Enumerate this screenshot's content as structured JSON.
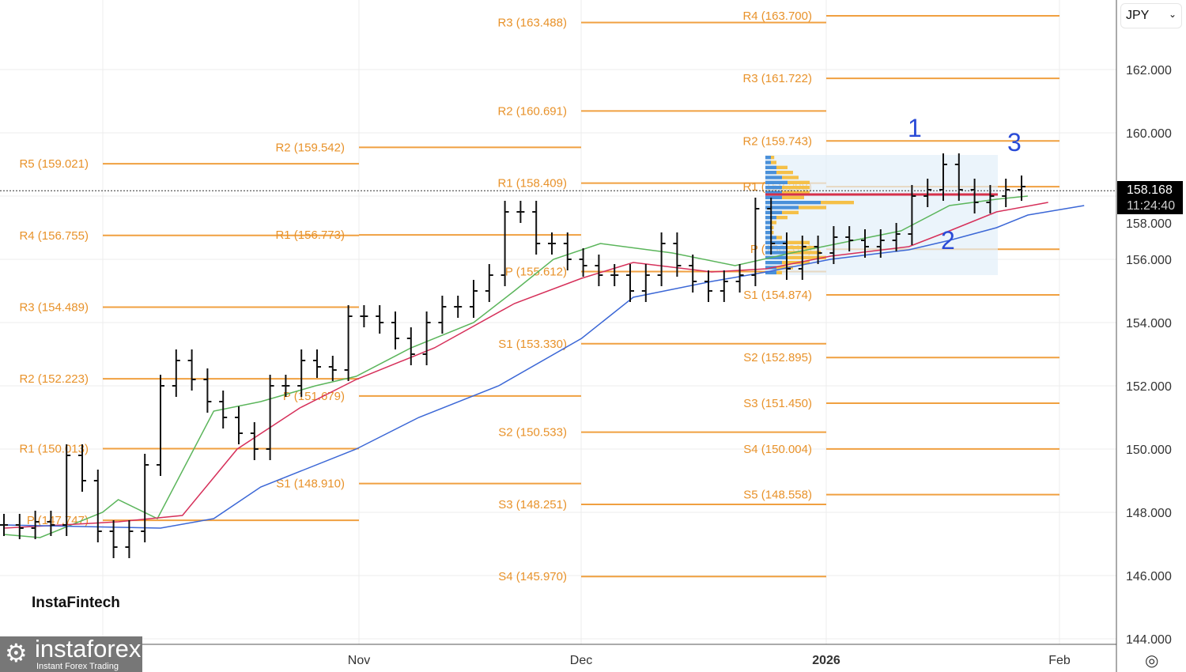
{
  "chart_data": {
    "type": "ohlc",
    "symbol_currency": "JPY",
    "ylim": [
      144,
      164
    ],
    "y_ticks": [
      "144.000",
      "146.000",
      "148.000",
      "150.000",
      "152.000",
      "154.000",
      "156.000",
      "158.000",
      "160.000",
      "162.000"
    ],
    "x_labels": [
      "Nov",
      "Dec",
      "2026",
      "Feb"
    ],
    "last_price": "158.168",
    "countdown": "11:24:40",
    "closes": [
      147.6,
      147.5,
      147.7,
      147.6,
      149.8,
      149.0,
      147.4,
      146.9,
      147.4,
      149.5,
      152.0,
      152.8,
      152.2,
      151.5,
      151.0,
      150.5,
      150.0,
      152.0,
      152.0,
      152.8,
      152.6,
      152.5,
      154.2,
      154.2,
      154.0,
      153.5,
      153.0,
      154.0,
      154.5,
      154.5,
      155.0,
      155.5,
      157.5,
      157.5,
      156.5,
      156.5,
      156.0,
      155.8,
      155.5,
      155.5,
      155.0,
      155.5,
      156.5,
      155.8,
      155.3,
      155.0,
      155.3,
      155.5,
      157.6,
      156.5,
      155.7,
      156.4,
      156.2,
      156.7,
      156.6,
      156.4,
      156.6,
      156.8,
      158.0,
      158.2,
      159.0,
      158.2,
      157.8,
      158.0,
      158.2,
      158.3
    ],
    "moving_averages": [
      {
        "name": "fast",
        "color": "#5bb55b",
        "points": [
          [
            0,
            147.3
          ],
          [
            2.3,
            147.2
          ],
          [
            6.3,
            148
          ],
          [
            7.3,
            148.4
          ],
          [
            9.8,
            147.8
          ],
          [
            13.4,
            151.2
          ],
          [
            16.4,
            151.5
          ],
          [
            19.9,
            152
          ],
          [
            22.5,
            152.3
          ],
          [
            26,
            153.2
          ],
          [
            30,
            154
          ],
          [
            32.6,
            155
          ],
          [
            35.1,
            156
          ],
          [
            38.1,
            156.5
          ],
          [
            42.7,
            156.2
          ],
          [
            46.7,
            155.8
          ],
          [
            50.3,
            156.2
          ],
          [
            53.3,
            156.5
          ],
          [
            57.3,
            156.9
          ],
          [
            60.4,
            157.7
          ],
          [
            63.4,
            157.9
          ],
          [
            65.4,
            158.0
          ]
        ]
      },
      {
        "name": "medium",
        "color": "#d6305a",
        "points": [
          [
            0,
            147.5
          ],
          [
            7.3,
            147.7
          ],
          [
            11.4,
            147.9
          ],
          [
            14.9,
            150
          ],
          [
            18.9,
            151.3
          ],
          [
            22.5,
            152.2
          ],
          [
            27.5,
            153.2
          ],
          [
            32.6,
            154.6
          ],
          [
            36.9,
            155.4
          ],
          [
            40.2,
            155.9
          ],
          [
            45.2,
            155.6
          ],
          [
            48.7,
            155.7
          ],
          [
            52.8,
            156.1
          ],
          [
            57.8,
            156.4
          ],
          [
            60.4,
            156.9
          ],
          [
            63.4,
            157.5
          ],
          [
            66.7,
            157.8
          ]
        ]
      },
      {
        "name": "slow",
        "color": "#3b67d6",
        "points": [
          [
            0,
            147.6
          ],
          [
            10,
            147.5
          ],
          [
            13.4,
            147.8
          ],
          [
            16.4,
            148.8
          ],
          [
            22.5,
            150
          ],
          [
            26.5,
            151
          ],
          [
            31.6,
            152
          ],
          [
            36.9,
            153.5
          ],
          [
            40.2,
            154.8
          ],
          [
            45.2,
            155.3
          ],
          [
            48.7,
            155.6
          ],
          [
            52.8,
            156
          ],
          [
            57.8,
            156.3
          ],
          [
            60.4,
            156.6
          ],
          [
            63.4,
            157
          ],
          [
            65.4,
            157.4
          ],
          [
            69,
            157.7
          ]
        ]
      }
    ],
    "pivot_periods": [
      {
        "levels": [
          [
            "R5 (159.021)",
            159.021
          ],
          [
            "R4 (156.755)",
            156.755
          ],
          [
            "R3 (154.489)",
            154.489
          ],
          [
            "R2 (152.223)",
            152.223
          ],
          [
            "R1 (150.013)",
            150.013
          ],
          [
            "P (147.747)",
            147.747
          ]
        ]
      },
      {
        "levels": [
          [
            "R2 (159.542)",
            159.542
          ],
          [
            "R1 (156.773)",
            156.773
          ],
          [
            "P (151.679)",
            151.679
          ],
          [
            "S1 (148.910)",
            148.91
          ]
        ]
      },
      {
        "levels": [
          [
            "R3 (163.488)",
            163.488
          ],
          [
            "R2 (160.691)",
            160.691
          ],
          [
            "R1 (158.409)",
            158.409
          ],
          [
            "P (155.612)",
            155.612
          ],
          [
            "S1 (153.330)",
            153.33
          ],
          [
            "S2 (150.533)",
            150.533
          ],
          [
            "S3 (148.251)",
            148.251
          ],
          [
            "S4 (145.970)",
            145.97
          ]
        ]
      },
      {
        "levels": [
          [
            "R4 (163.700)",
            163.7
          ],
          [
            "R3 (161.722)",
            161.722
          ],
          [
            "R2 (159.743)",
            159.743
          ],
          [
            "R1 (158.298)",
            158.298
          ],
          [
            "P (156.319)",
            156.319
          ],
          [
            "S1 (154.874)",
            154.874
          ],
          [
            "S2 (152.895)",
            152.895
          ],
          [
            "S3 (151.450)",
            151.45
          ],
          [
            "S4 (150.004)",
            150.004
          ],
          [
            "S5 (148.558)",
            148.558
          ]
        ]
      }
    ],
    "volume_profile": {
      "price_top": 159.3,
      "price_bottom": 155.5,
      "poc": 158.05,
      "bins": [
        [
          1,
          0.6
        ],
        [
          1,
          1
        ],
        [
          2,
          2
        ],
        [
          2,
          3
        ],
        [
          3,
          3
        ],
        [
          4,
          4
        ],
        [
          3,
          5
        ],
        [
          3,
          5
        ],
        [
          3,
          4
        ],
        [
          10,
          6
        ],
        [
          6,
          5
        ],
        [
          3,
          3
        ],
        [
          2,
          2
        ],
        [
          1,
          1
        ],
        [
          1,
          0.5
        ],
        [
          1,
          0.5
        ],
        [
          2,
          1
        ],
        [
          4,
          4
        ],
        [
          4,
          5
        ],
        [
          4,
          6
        ],
        [
          4,
          7
        ],
        [
          3,
          5
        ],
        [
          2,
          3
        ],
        [
          2,
          1
        ]
      ]
    },
    "annotations": [
      "1",
      "2",
      "3"
    ]
  },
  "header": {
    "currency": "JPY"
  },
  "branding": {
    "watermark": "InstaFintech",
    "logo_name": "instaforex",
    "logo_tagline": "Instant Forex Trading"
  }
}
